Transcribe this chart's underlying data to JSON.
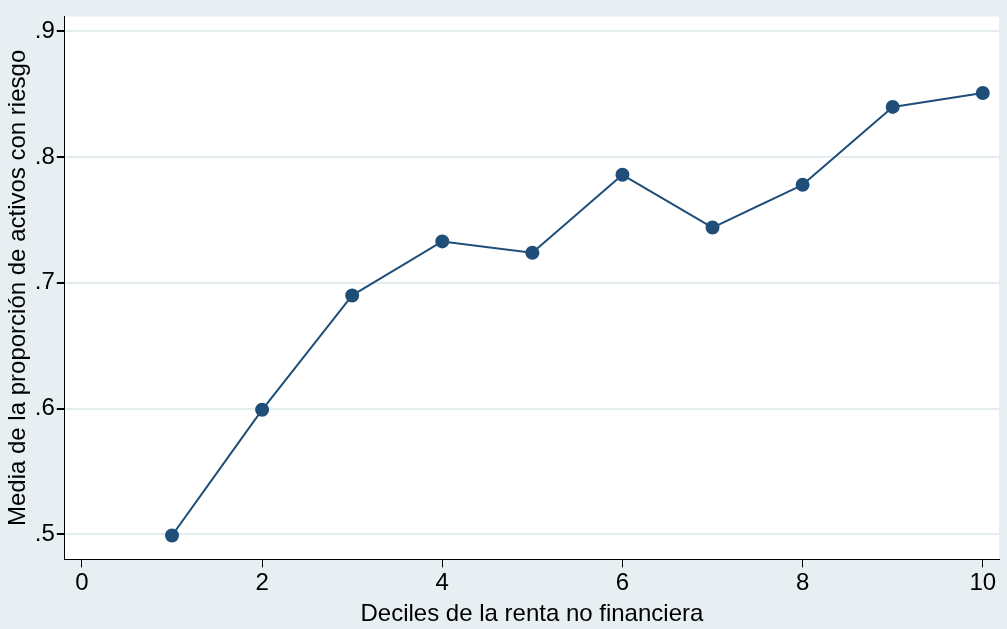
{
  "chart_data": {
    "type": "line",
    "xlabel": "Deciles de la renta no financiera",
    "ylabel": "Media de la proporción de activos con riesgo",
    "x": [
      1,
      2,
      3,
      4,
      5,
      6,
      7,
      8,
      9,
      10
    ],
    "series": [
      {
        "color": "#1f4e79",
        "values": [
          0.499,
          0.599,
          0.69,
          0.733,
          0.724,
          0.786,
          0.744,
          0.778,
          0.84,
          0.851
        ]
      }
    ],
    "xlim": [
      -0.19,
      10.18
    ],
    "xticks": [
      0,
      2,
      4,
      6,
      8,
      10
    ],
    "ylim": [
      0.48,
      0.912
    ],
    "yticks": [
      {
        "value": 0.5,
        "label": ".5"
      },
      {
        "value": 0.6,
        "label": ".6"
      },
      {
        "value": 0.7,
        "label": ".7"
      },
      {
        "value": 0.8,
        "label": ".8"
      },
      {
        "value": 0.9,
        "label": ".9"
      }
    ],
    "grid": "y",
    "marker": "circle",
    "line_style": "solid",
    "legend": false
  }
}
